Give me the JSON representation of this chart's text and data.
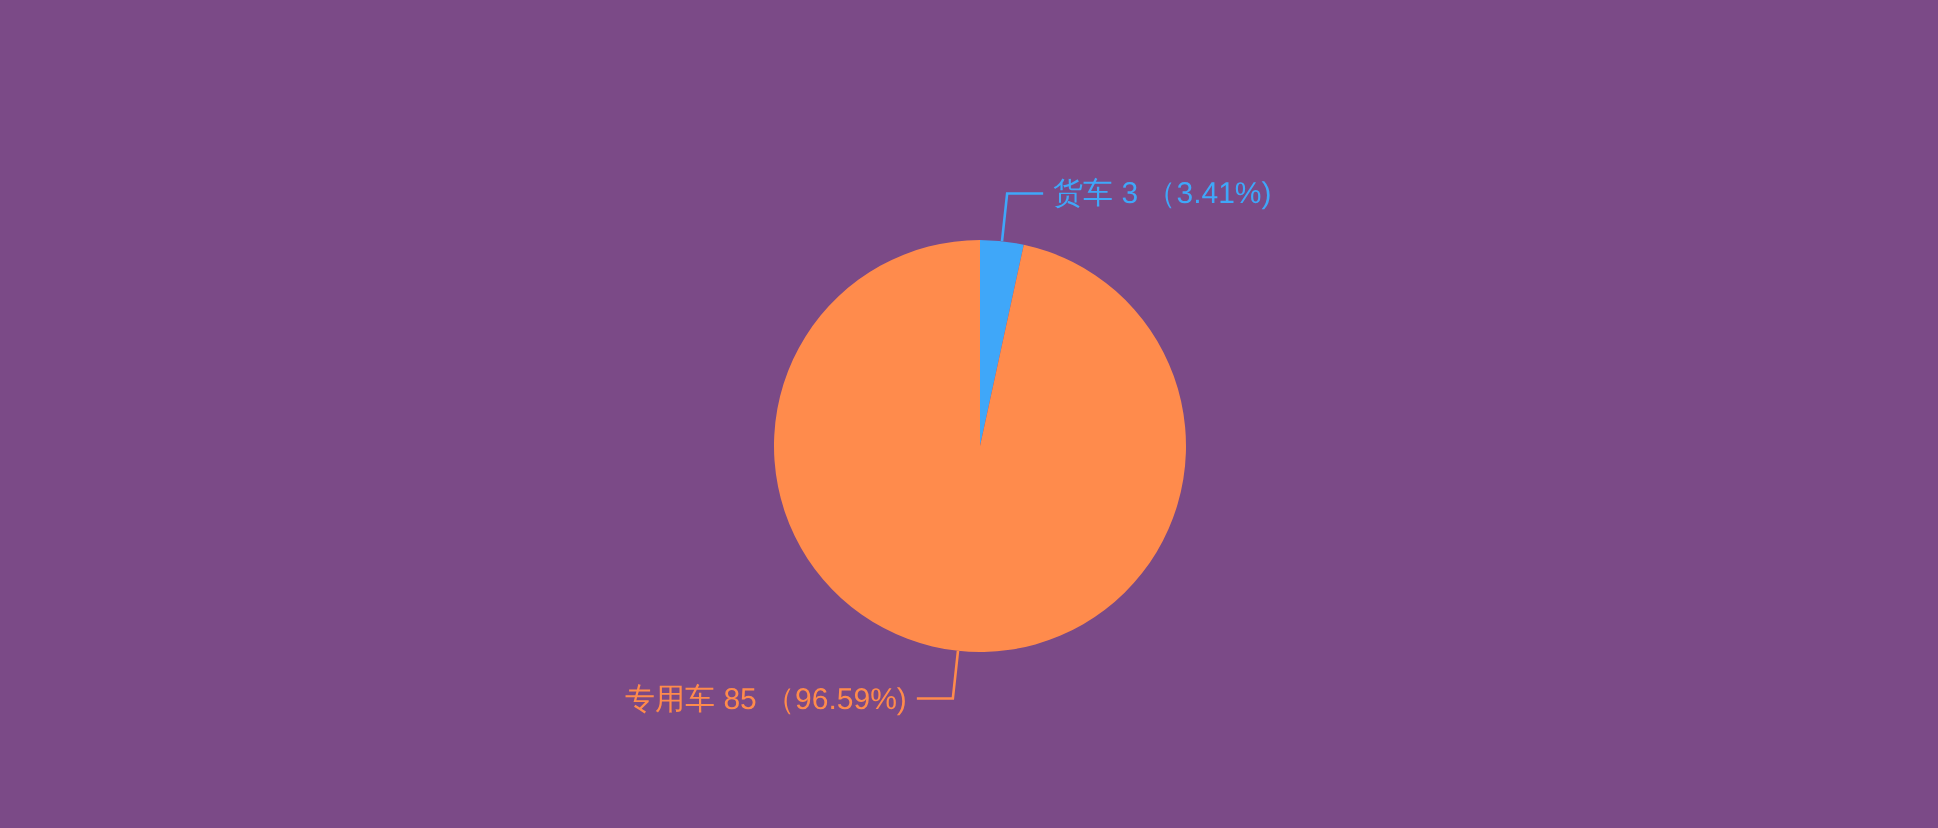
{
  "chart_data": {
    "type": "pie",
    "categories": [
      "货车",
      "专用车"
    ],
    "values": [
      3,
      85
    ],
    "colors": [
      "#3fa7f9",
      "#ff8b4c"
    ],
    "value_labels": [
      "3 （3.41%)",
      "85 （96.59%)"
    ]
  }
}
